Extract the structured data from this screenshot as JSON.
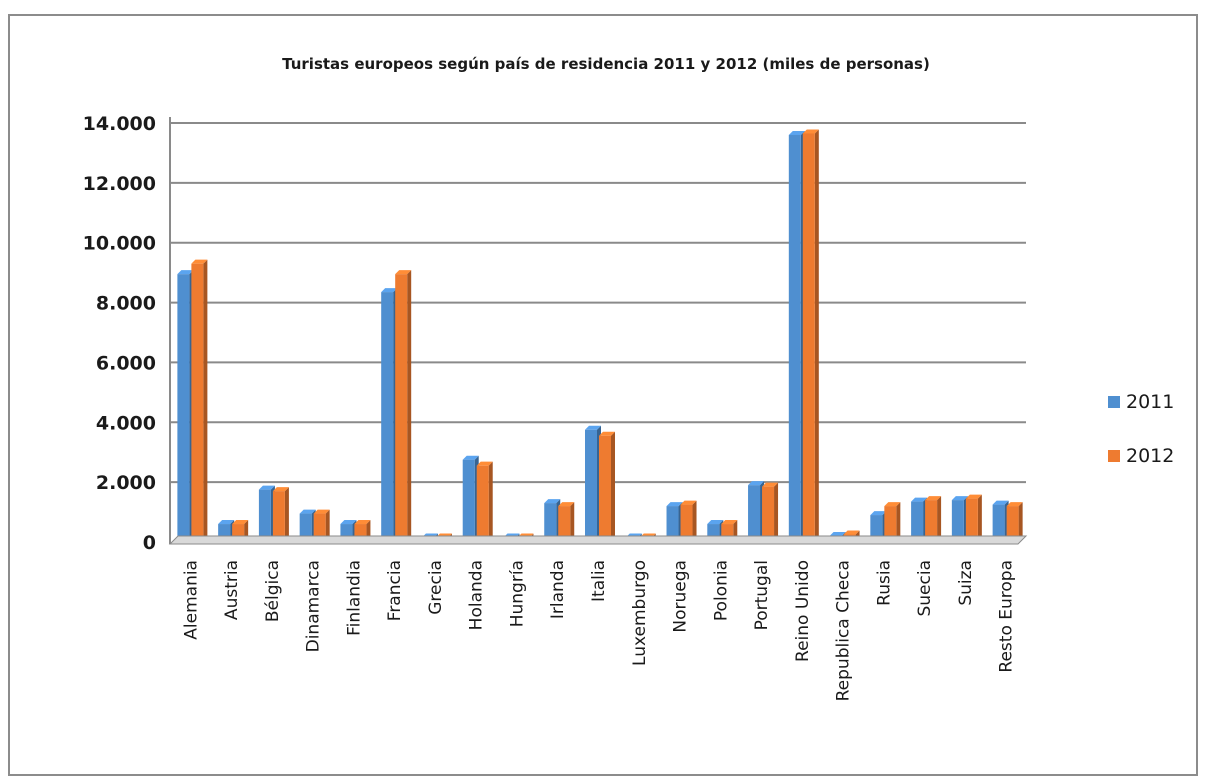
{
  "chart_data": {
    "type": "bar",
    "title": "Turistas europeos según país de residencia 2011  y 2012  (miles de personas)",
    "xlabel": "",
    "ylabel": "",
    "ylim": [
      0,
      14000
    ],
    "yticks": [
      0,
      2000,
      4000,
      6000,
      8000,
      10000,
      12000,
      14000
    ],
    "ytick_labels": [
      "0",
      "2.000",
      "4.000",
      "6.000",
      "8.000",
      "10.000",
      "12.000",
      "14.000"
    ],
    "grid": true,
    "legend_position": "right",
    "categories": [
      "Alemania",
      "Austria",
      "Bélgica",
      "Dinamarca",
      "Finlandia",
      "Francia",
      "Grecia",
      "Holanda",
      "Hungría",
      "Irlanda",
      "Italia",
      "Luxemburgo",
      "Noruega",
      "Polonia",
      "Portugal",
      "Reino Unido",
      "Republica Checa",
      "Rusia",
      "Suecia",
      "Suiza",
      "Resto Europa"
    ],
    "series": [
      {
        "name": "2011",
        "color": "#4f8fd0",
        "values": [
          8950,
          600,
          1750,
          950,
          600,
          8350,
          150,
          2750,
          150,
          1300,
          3750,
          150,
          1200,
          600,
          1900,
          13600,
          200,
          900,
          1350,
          1400,
          1250
        ]
      },
      {
        "name": "2012",
        "color": "#ee7b30",
        "values": [
          9300,
          600,
          1700,
          950,
          600,
          8950,
          150,
          2550,
          150,
          1200,
          3550,
          150,
          1250,
          600,
          1850,
          13650,
          250,
          1200,
          1400,
          1450,
          1200
        ]
      }
    ]
  }
}
